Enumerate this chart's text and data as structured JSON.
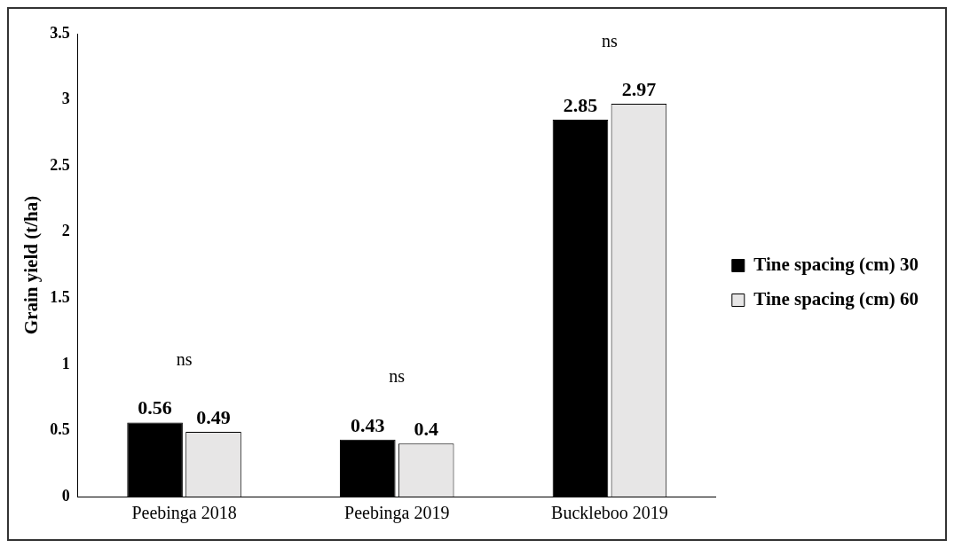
{
  "chart_data": {
    "type": "bar",
    "ylabel": "Grain yield (t/ha)",
    "categories": [
      "Peebinga 2018",
      "Peebinga 2019",
      "Buckleboo 2019"
    ],
    "series": [
      {
        "name": "Tine spacing (cm) 30",
        "color": "#000000",
        "values": [
          0.56,
          0.43,
          2.85
        ]
      },
      {
        "name": "Tine spacing (cm) 60",
        "color": "#e7e6e6",
        "values": [
          0.49,
          0.4,
          2.97
        ]
      }
    ],
    "ylim": [
      0,
      3.5
    ],
    "yticks": [
      0,
      0.5,
      1,
      1.5,
      2,
      2.5,
      3,
      3.5
    ],
    "grid": false,
    "legend": "right",
    "data_labels": true,
    "annotations": [
      "ns",
      "ns",
      "ns"
    ]
  }
}
